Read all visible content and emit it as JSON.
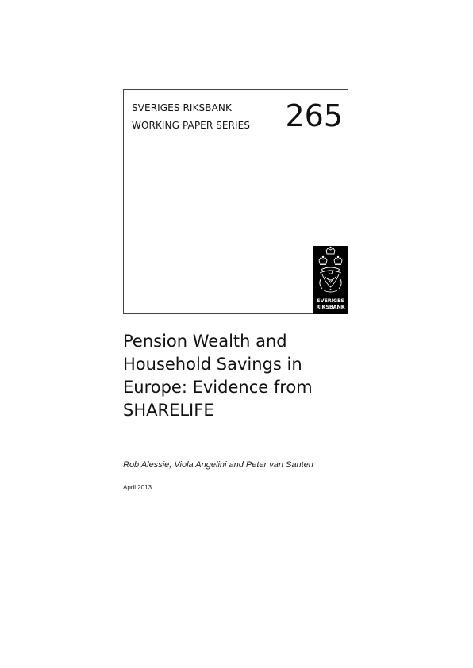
{
  "cover": {
    "publisher_line1": "SVERIGES RIKSBANK",
    "publisher_line2": "WORKING PAPER SERIES",
    "issue_number": "265",
    "logo": {
      "icon": "riksbank-crowns-emblem-icon",
      "text_line1": "SVERIGES",
      "text_line2": "RIKSBANK",
      "background_color": "#000000",
      "text_color": "#ffffff"
    }
  },
  "title_lines": [
    "Pension Wealth and",
    "Household Savings in",
    "Europe: Evidence from",
    "SHARELIFE"
  ],
  "authors": "Rob Alessie, Viola Angelini and Peter van Santen",
  "date": "April 2013"
}
